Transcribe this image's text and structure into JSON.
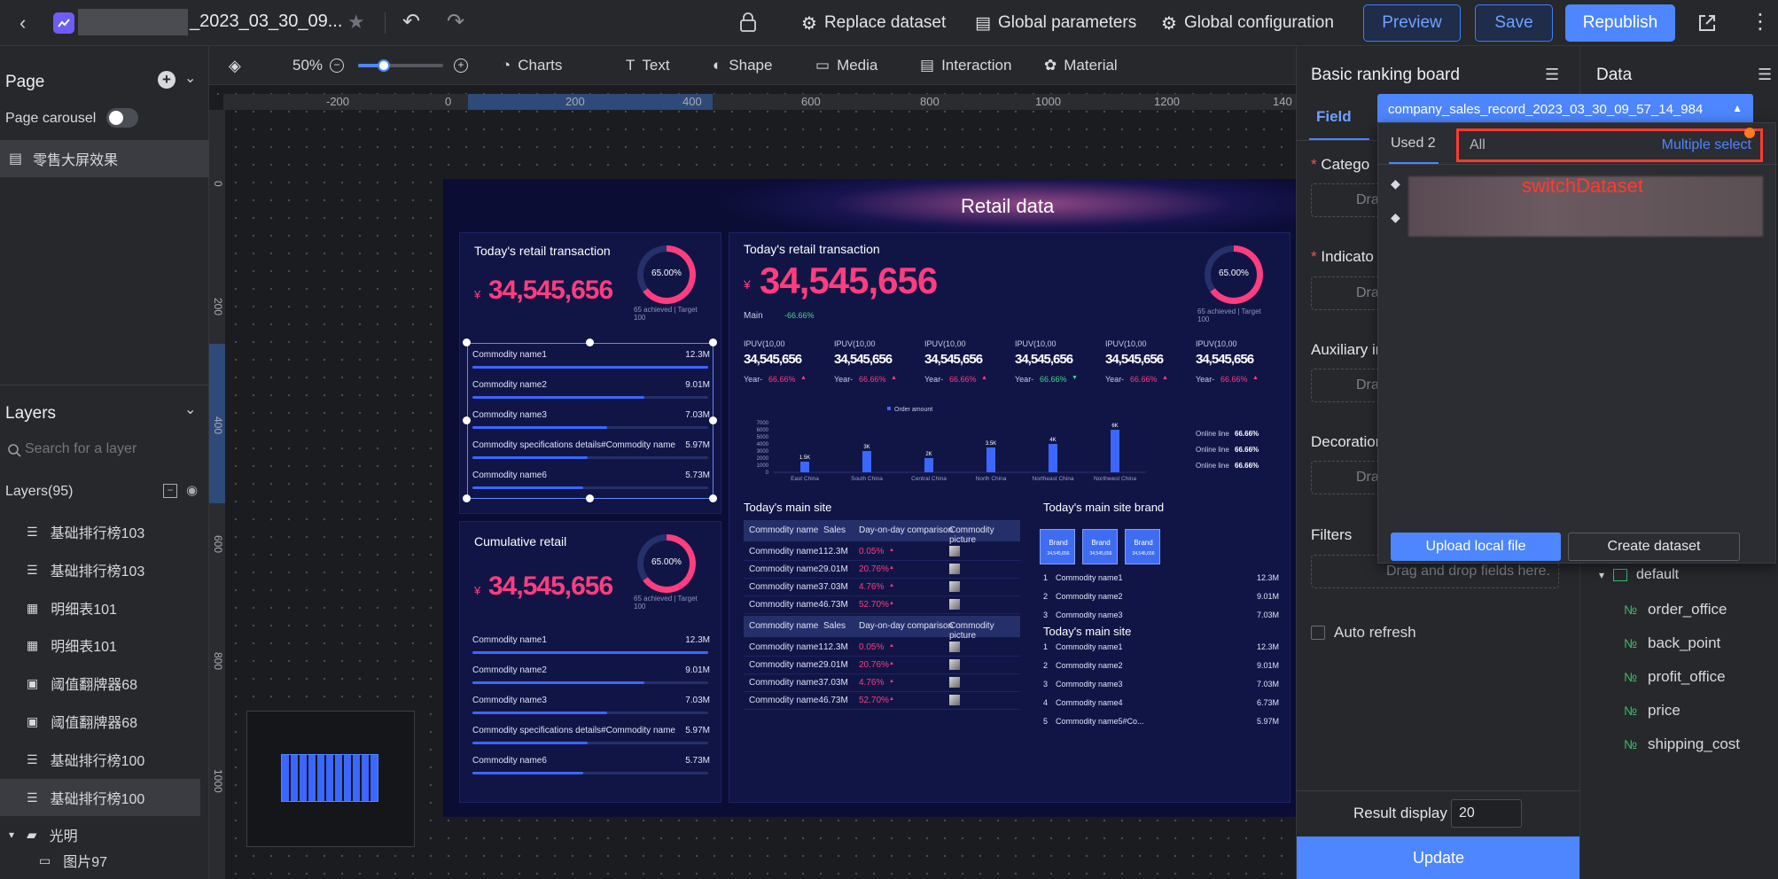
{
  "topbar": {
    "title": "_2023_03_30_09...",
    "replace_dataset": "Replace dataset",
    "global_parameters": "Global parameters",
    "global_configuration": "Global configuration",
    "preview": "Preview",
    "save": "Save",
    "republish": "Republish"
  },
  "left": {
    "page_title": "Page",
    "page_carousel": "Page carousel",
    "page_item": "零售大屏效果",
    "layers_title": "Layers",
    "search_placeholder": "Search for a layer",
    "layers_count": "Layers(95)",
    "layers": [
      {
        "label": "基础排行榜103",
        "icon": "list-icon"
      },
      {
        "label": "基础排行榜103",
        "icon": "list-icon"
      },
      {
        "label": "明细表101",
        "icon": "table-icon"
      },
      {
        "label": "明细表101",
        "icon": "table-icon"
      },
      {
        "label": "阈值翻牌器68",
        "icon": "flip-icon"
      },
      {
        "label": "阈值翻牌器68",
        "icon": "flip-icon"
      },
      {
        "label": "基础排行榜100",
        "icon": "list-icon"
      },
      {
        "label": "基础排行榜100",
        "icon": "list-icon"
      },
      {
        "label": "光明",
        "icon": "folder-icon"
      },
      {
        "label": "图片97",
        "icon": "image-icon"
      }
    ]
  },
  "toolbar": {
    "zoom": "50%",
    "zoom_level": 0.3,
    "charts": "Charts",
    "text": "Text",
    "shape": "Shape",
    "media": "Media",
    "interaction": "Interaction",
    "material": "Material"
  },
  "ruler": {
    "h": [
      "-200",
      "0",
      "200",
      "400",
      "600",
      "800",
      "1000",
      "1200",
      "140"
    ],
    "v": [
      "0",
      "200",
      "400",
      "600",
      "800",
      "1000"
    ]
  },
  "screen": {
    "title": "Retail data",
    "card1_title": "Today's retail transaction",
    "big_value": "34,545,656",
    "currency": "¥",
    "gauge_pct": "65.00%",
    "gauge_sub": "65 achieved | Target 100",
    "rank_items": [
      {
        "name": "Commodity name1",
        "value": "12.3M",
        "fill": 1.0
      },
      {
        "name": "Commodity name2",
        "value": "9.01M",
        "fill": 0.73
      },
      {
        "name": "Commodity name3",
        "value": "7.03M",
        "fill": 0.57
      },
      {
        "name": "Commodity specifications details#Commodity name",
        "value": "5.97M",
        "fill": 0.49
      },
      {
        "name": "Commodity name6",
        "value": "5.73M",
        "fill": 0.47
      }
    ],
    "card2_title": "Cumulative retail",
    "main_label": "Main",
    "main_change": "-66.66%",
    "ipuv": [
      {
        "label": "IPUV(10,00",
        "value": "34,545,656",
        "year": "Year-",
        "change": "66.66%",
        "dir": "up"
      },
      {
        "label": "IPUV(10,00",
        "value": "34,545,656",
        "year": "Year-",
        "change": "66.66%",
        "dir": "up"
      },
      {
        "label": "IPUV(10,00",
        "value": "34,545,656",
        "year": "Year-",
        "change": "66.66%",
        "dir": "up"
      },
      {
        "label": "IPUV(10,00",
        "value": "34,545,656",
        "year": "Year-",
        "change": "66.66%",
        "dir": "down"
      },
      {
        "label": "IPUV(10,00",
        "value": "34,545,656",
        "year": "Year-",
        "change": "66.66%",
        "dir": "up"
      },
      {
        "label": "IPUV(10,00",
        "value": "34,545,656",
        "year": "Year-",
        "change": "66.66%",
        "dir": "up"
      }
    ],
    "online": [
      {
        "label": "Online line",
        "value": "66.66%"
      },
      {
        "label": "Online line",
        "value": "66.66%"
      },
      {
        "label": "Online line",
        "value": "66.66%"
      }
    ],
    "main_site_title": "Today's main site",
    "brand_title": "Today's main site brand",
    "main_site_title2": "Today's main site",
    "table_headers": [
      "Commodity name",
      "Sales",
      "Day-on-day comparison",
      "Commodity picture"
    ],
    "table_rows": [
      {
        "name": "Commodity name1",
        "sales": "12.3M",
        "cmp": "0.05%"
      },
      {
        "name": "Commodity name2",
        "sales": "9.01M",
        "cmp": "20.76%"
      },
      {
        "name": "Commodity name3",
        "sales": "7.03M",
        "cmp": "4.76%"
      },
      {
        "name": "Commodity name4",
        "sales": "6.73M",
        "cmp": "52.70%"
      }
    ],
    "brand_label": "Brand",
    "brand_value": "34,545,656",
    "brand_list": [
      {
        "n": "1",
        "name": "Commodity name1",
        "v": "12.3M"
      },
      {
        "n": "2",
        "name": "Commodity name2",
        "v": "9.01M"
      },
      {
        "n": "3",
        "name": "Commodity name3",
        "v": "7.03M"
      }
    ],
    "site_list": [
      {
        "n": "1",
        "name": "Commodity name1",
        "v": "12.3M"
      },
      {
        "n": "2",
        "name": "Commodity name2",
        "v": "9.01M"
      },
      {
        "n": "3",
        "name": "Commodity name3",
        "v": "7.03M"
      },
      {
        "n": "4",
        "name": "Commodity name4",
        "v": "6.73M"
      },
      {
        "n": "5",
        "name": "Commodity name5#Co...",
        "v": "5.97M"
      }
    ]
  },
  "chart_data": {
    "type": "bar",
    "legend": "Order amount",
    "categories": [
      "East China",
      "South China",
      "Central China",
      "North China",
      "Northeast China",
      "Northwest China"
    ],
    "values": [
      1500,
      3000,
      2000,
      3500,
      4000,
      6000
    ],
    "labels": [
      "1.5K",
      "3K",
      "2K",
      "3.5K",
      "4K",
      "6K"
    ],
    "yticks": [
      "7000",
      "6000",
      "5000",
      "4000",
      "3000",
      "2000",
      "1000",
      "0"
    ],
    "ylim": [
      0,
      7000
    ],
    "color": "#3b67ff"
  },
  "right": {
    "title": "Basic ranking board",
    "tab_field": "Field",
    "category": "Catego",
    "indicator": "Indicato",
    "auxiliary": "Auxiliary in",
    "decoration": "Decoration",
    "filters": "Filters",
    "drop_short": "Dra",
    "drop_full": "Drag and drop fields here.",
    "auto_refresh": "Auto refresh",
    "result_display": "Result display",
    "result_value": "20",
    "update": "Update"
  },
  "popup": {
    "dataset": "company_sales_record_2023_03_30_09_57_14_984",
    "used": "Used 2",
    "all": "All",
    "multiple_select": "Multiple select",
    "annotation": "switchDataset",
    "upload": "Upload local file",
    "create": "Create dataset"
  },
  "data": {
    "title": "Data",
    "group": "default",
    "fields": [
      "order_office",
      "back_point",
      "profit_office",
      "price",
      "shipping_cost"
    ]
  },
  "colors": {
    "accent": "#4d86ff",
    "pink": "#ff3d7f",
    "annotation": "#ff3b30"
  }
}
